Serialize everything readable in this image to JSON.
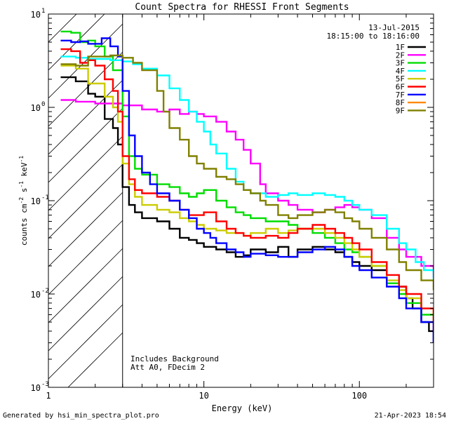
{
  "chart_data": {
    "type": "line",
    "scale": "log-log",
    "title": "Count Spectra for RHESSI Front Segments",
    "xlabel": "Energy (keV)",
    "ylabel_parts": [
      "counts cm",
      "-2",
      " s",
      "-1",
      " keV",
      "-1"
    ],
    "xlim": [
      1,
      300
    ],
    "ylim": [
      0.001,
      10
    ],
    "x_ticks": [
      {
        "v": 1,
        "label": "1"
      },
      {
        "v": 10,
        "label": "10"
      },
      {
        "v": 100,
        "label": "100"
      }
    ],
    "y_ticks": [
      {
        "v": 0.001,
        "base": "10",
        "exp": "-3"
      },
      {
        "v": 0.01,
        "base": "10",
        "exp": "-2"
      },
      {
        "v": 0.1,
        "base": "10",
        "exp": "-1"
      },
      {
        "v": 1,
        "base": "10",
        "exp": "0"
      },
      {
        "v": 10,
        "base": "10",
        "exp": "1"
      }
    ],
    "date": "13-Jul-2015",
    "time_range": "18:15:00 to 18:16:00",
    "hatched_region_max_keV": 3,
    "annotations": [
      "Includes Background",
      "Att A0, FDecim 2"
    ],
    "series": [
      {
        "name": "1F",
        "color": "#000000",
        "points": [
          [
            1.2,
            2.1
          ],
          [
            1.5,
            1.9
          ],
          [
            1.8,
            1.4
          ],
          [
            2.0,
            1.3
          ],
          [
            2.3,
            0.75
          ],
          [
            2.6,
            0.6
          ],
          [
            2.8,
            0.4
          ],
          [
            3.0,
            0.14
          ],
          [
            3.3,
            0.09
          ],
          [
            3.6,
            0.075
          ],
          [
            4,
            0.065
          ],
          [
            5,
            0.06
          ],
          [
            6,
            0.05
          ],
          [
            7,
            0.04
          ],
          [
            8,
            0.038
          ],
          [
            9,
            0.035
          ],
          [
            10,
            0.032
          ],
          [
            12,
            0.03
          ],
          [
            14,
            0.028
          ],
          [
            16,
            0.025
          ],
          [
            18,
            0.026
          ],
          [
            20,
            0.03
          ],
          [
            25,
            0.028
          ],
          [
            30,
            0.032
          ],
          [
            35,
            0.025
          ],
          [
            40,
            0.03
          ],
          [
            50,
            0.032
          ],
          [
            60,
            0.03
          ],
          [
            70,
            0.028
          ],
          [
            80,
            0.025
          ],
          [
            90,
            0.022
          ],
          [
            100,
            0.02
          ],
          [
            120,
            0.018
          ],
          [
            150,
            0.013
          ],
          [
            180,
            0.012
          ],
          [
            200,
            0.009
          ],
          [
            220,
            0.007
          ],
          [
            250,
            0.005
          ],
          [
            280,
            0.004
          ],
          [
            300,
            0.003
          ]
        ]
      },
      {
        "name": "2F",
        "color": "#ff00ff",
        "points": [
          [
            1.2,
            1.2
          ],
          [
            1.5,
            1.15
          ],
          [
            2.0,
            1.1
          ],
          [
            2.5,
            1.1
          ],
          [
            3.0,
            1.05
          ],
          [
            4,
            0.95
          ],
          [
            5,
            0.9
          ],
          [
            6,
            0.95
          ],
          [
            7,
            0.85
          ],
          [
            8,
            0.9
          ],
          [
            9,
            0.85
          ],
          [
            10,
            0.8
          ],
          [
            12,
            0.7
          ],
          [
            14,
            0.55
          ],
          [
            16,
            0.45
          ],
          [
            18,
            0.35
          ],
          [
            20,
            0.25
          ],
          [
            23,
            0.15
          ],
          [
            25,
            0.12
          ],
          [
            30,
            0.1
          ],
          [
            35,
            0.09
          ],
          [
            40,
            0.08
          ],
          [
            50,
            0.075
          ],
          [
            60,
            0.08
          ],
          [
            70,
            0.085
          ],
          [
            80,
            0.09
          ],
          [
            90,
            0.085
          ],
          [
            100,
            0.08
          ],
          [
            120,
            0.065
          ],
          [
            150,
            0.04
          ],
          [
            180,
            0.03
          ],
          [
            200,
            0.025
          ],
          [
            250,
            0.02
          ],
          [
            300,
            0.015
          ]
        ]
      },
      {
        "name": "3F",
        "color": "#00dd00",
        "points": [
          [
            1.2,
            6.5
          ],
          [
            1.4,
            6.3
          ],
          [
            1.6,
            5.0
          ],
          [
            1.8,
            5.2
          ],
          [
            2.0,
            4.5
          ],
          [
            2.3,
            3.5
          ],
          [
            2.6,
            2.5
          ],
          [
            3.0,
            0.8
          ],
          [
            3.3,
            0.3
          ],
          [
            3.6,
            0.22
          ],
          [
            4,
            0.19
          ],
          [
            5,
            0.15
          ],
          [
            6,
            0.14
          ],
          [
            7,
            0.12
          ],
          [
            8,
            0.11
          ],
          [
            9,
            0.12
          ],
          [
            10,
            0.13
          ],
          [
            12,
            0.1
          ],
          [
            14,
            0.085
          ],
          [
            16,
            0.075
          ],
          [
            18,
            0.07
          ],
          [
            20,
            0.065
          ],
          [
            25,
            0.06
          ],
          [
            30,
            0.06
          ],
          [
            35,
            0.055
          ],
          [
            40,
            0.05
          ],
          [
            50,
            0.045
          ],
          [
            60,
            0.04
          ],
          [
            70,
            0.035
          ],
          [
            80,
            0.03
          ],
          [
            90,
            0.028
          ],
          [
            100,
            0.025
          ],
          [
            120,
            0.02
          ],
          [
            150,
            0.013
          ],
          [
            180,
            0.01
          ],
          [
            200,
            0.008
          ],
          [
            250,
            0.006
          ],
          [
            300,
            0.005
          ]
        ]
      },
      {
        "name": "4F",
        "color": "#00ffff",
        "points": [
          [
            1.2,
            3.5
          ],
          [
            1.5,
            3.4
          ],
          [
            1.8,
            3.3
          ],
          [
            2.0,
            3.3
          ],
          [
            2.5,
            3.2
          ],
          [
            3.0,
            3.1
          ],
          [
            3.5,
            2.9
          ],
          [
            4,
            2.6
          ],
          [
            5,
            2.2
          ],
          [
            6,
            1.6
          ],
          [
            7,
            1.2
          ],
          [
            8,
            0.9
          ],
          [
            9,
            0.7
          ],
          [
            10,
            0.55
          ],
          [
            11,
            0.4
          ],
          [
            12,
            0.32
          ],
          [
            14,
            0.22
          ],
          [
            16,
            0.16
          ],
          [
            18,
            0.13
          ],
          [
            20,
            0.12
          ],
          [
            25,
            0.11
          ],
          [
            30,
            0.115
          ],
          [
            35,
            0.12
          ],
          [
            40,
            0.115
          ],
          [
            50,
            0.12
          ],
          [
            60,
            0.115
          ],
          [
            70,
            0.11
          ],
          [
            80,
            0.1
          ],
          [
            90,
            0.09
          ],
          [
            100,
            0.08
          ],
          [
            120,
            0.07
          ],
          [
            150,
            0.05
          ],
          [
            180,
            0.035
          ],
          [
            200,
            0.03
          ],
          [
            230,
            0.022
          ],
          [
            260,
            0.018
          ],
          [
            300,
            0.014
          ]
        ]
      },
      {
        "name": "5F",
        "color": "#cccc00",
        "points": [
          [
            1.2,
            2.8
          ],
          [
            1.5,
            2.6
          ],
          [
            1.8,
            1.8
          ],
          [
            2.0,
            1.8
          ],
          [
            2.3,
            1.3
          ],
          [
            2.6,
            1.0
          ],
          [
            2.8,
            0.7
          ],
          [
            3.0,
            0.25
          ],
          [
            3.3,
            0.15
          ],
          [
            3.6,
            0.11
          ],
          [
            4,
            0.09
          ],
          [
            5,
            0.08
          ],
          [
            6,
            0.075
          ],
          [
            7,
            0.065
          ],
          [
            8,
            0.06
          ],
          [
            9,
            0.055
          ],
          [
            10,
            0.05
          ],
          [
            12,
            0.048
          ],
          [
            14,
            0.045
          ],
          [
            16,
            0.045
          ],
          [
            18,
            0.042
          ],
          [
            20,
            0.045
          ],
          [
            25,
            0.05
          ],
          [
            30,
            0.045
          ],
          [
            35,
            0.048
          ],
          [
            40,
            0.05
          ],
          [
            50,
            0.05
          ],
          [
            60,
            0.045
          ],
          [
            70,
            0.04
          ],
          [
            80,
            0.035
          ],
          [
            90,
            0.03
          ],
          [
            100,
            0.025
          ],
          [
            120,
            0.02
          ],
          [
            150,
            0.014
          ],
          [
            180,
            0.011
          ],
          [
            200,
            0.009
          ],
          [
            250,
            0.007
          ],
          [
            300,
            0.006
          ]
        ]
      },
      {
        "name": "6F",
        "color": "#ff0000",
        "points": [
          [
            1.2,
            4.2
          ],
          [
            1.4,
            4.0
          ],
          [
            1.6,
            3.0
          ],
          [
            1.8,
            3.2
          ],
          [
            2.0,
            2.8
          ],
          [
            2.3,
            2.0
          ],
          [
            2.6,
            1.5
          ],
          [
            2.8,
            0.9
          ],
          [
            3.0,
            0.3
          ],
          [
            3.3,
            0.17
          ],
          [
            3.6,
            0.13
          ],
          [
            4,
            0.12
          ],
          [
            5,
            0.11
          ],
          [
            6,
            0.1
          ],
          [
            7,
            0.08
          ],
          [
            8,
            0.07
          ],
          [
            9,
            0.07
          ],
          [
            10,
            0.075
          ],
          [
            12,
            0.06
          ],
          [
            14,
            0.05
          ],
          [
            16,
            0.045
          ],
          [
            18,
            0.042
          ],
          [
            20,
            0.04
          ],
          [
            25,
            0.042
          ],
          [
            30,
            0.04
          ],
          [
            35,
            0.045
          ],
          [
            40,
            0.05
          ],
          [
            50,
            0.055
          ],
          [
            60,
            0.05
          ],
          [
            70,
            0.045
          ],
          [
            80,
            0.04
          ],
          [
            90,
            0.035
          ],
          [
            100,
            0.03
          ],
          [
            120,
            0.022
          ],
          [
            150,
            0.016
          ],
          [
            180,
            0.012
          ],
          [
            200,
            0.01
          ],
          [
            250,
            0.007
          ],
          [
            300,
            0.004
          ]
        ]
      },
      {
        "name": "7F",
        "color": "#0000ff",
        "points": [
          [
            1.2,
            5.2
          ],
          [
            1.4,
            5.0
          ],
          [
            1.6,
            5.1
          ],
          [
            1.8,
            4.8
          ],
          [
            2.0,
            4.8
          ],
          [
            2.2,
            5.5
          ],
          [
            2.5,
            4.5
          ],
          [
            2.8,
            3.5
          ],
          [
            3.0,
            1.5
          ],
          [
            3.3,
            0.5
          ],
          [
            3.6,
            0.3
          ],
          [
            4,
            0.2
          ],
          [
            4.5,
            0.15
          ],
          [
            5,
            0.12
          ],
          [
            6,
            0.1
          ],
          [
            7,
            0.08
          ],
          [
            8,
            0.065
          ],
          [
            9,
            0.05
          ],
          [
            10,
            0.045
          ],
          [
            11,
            0.04
          ],
          [
            12,
            0.035
          ],
          [
            14,
            0.03
          ],
          [
            16,
            0.028
          ],
          [
            18,
            0.025
          ],
          [
            20,
            0.027
          ],
          [
            25,
            0.026
          ],
          [
            30,
            0.025
          ],
          [
            40,
            0.028
          ],
          [
            50,
            0.03
          ],
          [
            60,
            0.032
          ],
          [
            70,
            0.03
          ],
          [
            80,
            0.025
          ],
          [
            90,
            0.02
          ],
          [
            100,
            0.018
          ],
          [
            120,
            0.015
          ],
          [
            150,
            0.012
          ],
          [
            180,
            0.009
          ],
          [
            200,
            0.007
          ],
          [
            250,
            0.005
          ],
          [
            300,
            0.003
          ]
        ]
      },
      {
        "name": "8F",
        "color": "#ff8800",
        "points": []
      },
      {
        "name": "9F",
        "color": "#808000",
        "points": [
          [
            1.2,
            2.9
          ],
          [
            1.5,
            2.8
          ],
          [
            1.8,
            3.5
          ],
          [
            2.0,
            3.5
          ],
          [
            2.5,
            3.6
          ],
          [
            3.0,
            3.4
          ],
          [
            3.5,
            3.0
          ],
          [
            4,
            2.5
          ],
          [
            5,
            1.5
          ],
          [
            5.5,
            0.9
          ],
          [
            6,
            0.6
          ],
          [
            7,
            0.45
          ],
          [
            8,
            0.3
          ],
          [
            9,
            0.25
          ],
          [
            10,
            0.22
          ],
          [
            12,
            0.18
          ],
          [
            14,
            0.17
          ],
          [
            16,
            0.15
          ],
          [
            18,
            0.13
          ],
          [
            20,
            0.12
          ],
          [
            23,
            0.1
          ],
          [
            25,
            0.09
          ],
          [
            30,
            0.07
          ],
          [
            35,
            0.065
          ],
          [
            40,
            0.07
          ],
          [
            50,
            0.075
          ],
          [
            60,
            0.08
          ],
          [
            70,
            0.075
          ],
          [
            80,
            0.065
          ],
          [
            90,
            0.06
          ],
          [
            100,
            0.05
          ],
          [
            120,
            0.04
          ],
          [
            150,
            0.03
          ],
          [
            180,
            0.022
          ],
          [
            200,
            0.018
          ],
          [
            250,
            0.014
          ],
          [
            300,
            0.011
          ]
        ]
      }
    ]
  },
  "footer": {
    "generated_by": "Generated by hsi_min_spectra_plot.pro",
    "timestamp": "21-Apr-2023 18:54"
  },
  "colors": {
    "background": "#ffffff",
    "axes": "#000000"
  }
}
